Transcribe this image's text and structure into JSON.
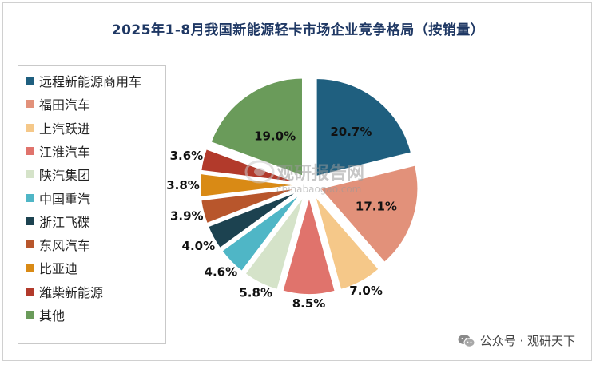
{
  "chart_data": {
    "type": "pie",
    "title": "2025年1-8月我国新能源轻卡市场企业竞争格局（按销量）",
    "unit": "%",
    "legend_position": "left",
    "categories": [
      "远程新能源商用车",
      "福田汽车",
      "上汽跃进",
      "江淮汽车",
      "陕汽集团",
      "中国重汽",
      "浙江飞碟",
      "东风汽车",
      "比亚迪",
      "潍柴新能源",
      "其他"
    ],
    "values": [
      20.7,
      17.1,
      7.0,
      8.5,
      5.8,
      4.6,
      4.0,
      3.9,
      3.8,
      3.6,
      19.0
    ],
    "labels": [
      "20.7%",
      "17.1%",
      "7.0%",
      "8.5%",
      "5.8%",
      "4.6%",
      "4.0%",
      "3.9%",
      "3.8%",
      "3.6%",
      "19.0%"
    ],
    "colors": [
      "#1f5f7f",
      "#e2917a",
      "#f5c889",
      "#e0736c",
      "#d5e3c9",
      "#4fb6c6",
      "#1c4250",
      "#b8562c",
      "#d98a15",
      "#b23a2b",
      "#6a9b5a"
    ]
  },
  "watermark": {
    "main": "观研报告网",
    "sub": "chinabaogao.com"
  },
  "footer": {
    "text": "公众号 · 观研天下",
    "icon": "wechat-icon"
  }
}
